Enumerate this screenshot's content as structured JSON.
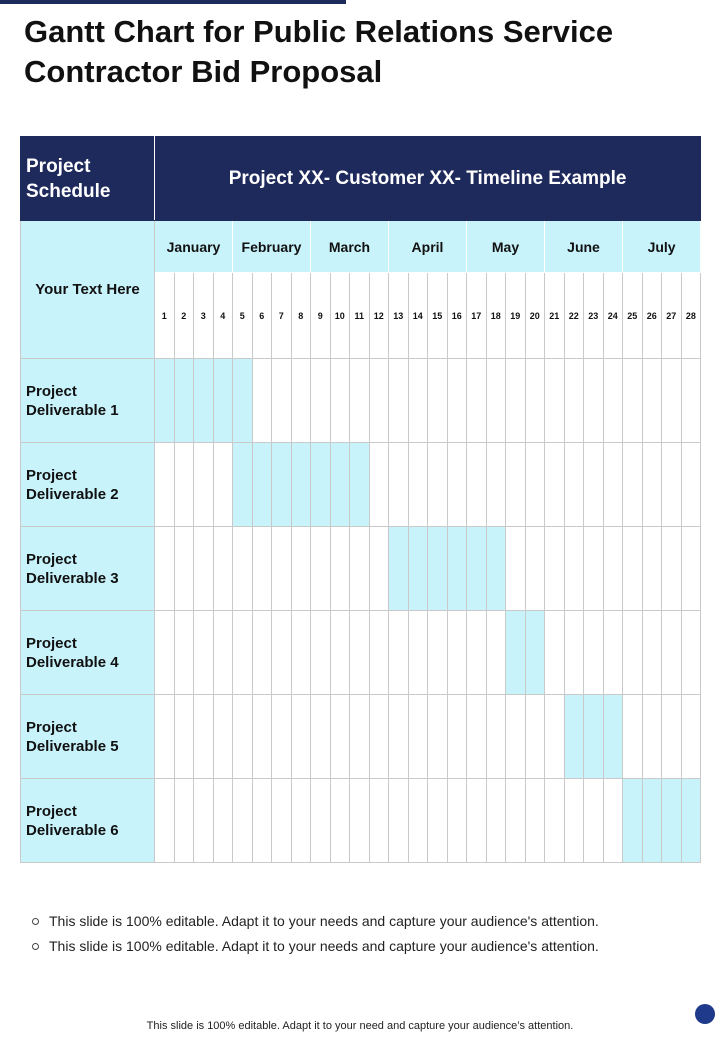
{
  "title": "Gantt Chart for Public Relations Service Contractor Bid Proposal",
  "table": {
    "corner_label": "Project Schedule",
    "timeline_title": "Project XX- Customer XX- Timeline Example",
    "side_label": "Your Text Here",
    "months": [
      {
        "label": "January",
        "weeks": 4
      },
      {
        "label": "February",
        "weeks": 4
      },
      {
        "label": "March",
        "weeks": 4
      },
      {
        "label": "April",
        "weeks": 4
      },
      {
        "label": "May",
        "weeks": 4
      },
      {
        "label": "June",
        "weeks": 4
      },
      {
        "label": "July",
        "weeks": 4
      }
    ],
    "weeks": [
      "1",
      "2",
      "3",
      "4",
      "5",
      "6",
      "7",
      "8",
      "9",
      "10",
      "11",
      "12",
      "13",
      "14",
      "15",
      "16",
      "17",
      "18",
      "19",
      "20",
      "21",
      "22",
      "23",
      "24",
      "25",
      "26",
      "27",
      "28"
    ],
    "deliverables": [
      {
        "label": "Project Deliverable 1",
        "start_week": 1,
        "end_week": 5
      },
      {
        "label": "Project Deliverable 2",
        "start_week": 5,
        "end_week": 11
      },
      {
        "label": "Project Deliverable 3",
        "start_week": 13,
        "end_week": 18
      },
      {
        "label": "Project Deliverable 4",
        "start_week": 19,
        "end_week": 20
      },
      {
        "label": "Project Deliverable 5",
        "start_week": 22,
        "end_week": 24
      },
      {
        "label": "Project Deliverable 6",
        "start_week": 25,
        "end_week": 28
      }
    ]
  },
  "notes": [
    "This slide is 100% editable. Adapt it to your needs and capture your audience's attention.",
    "This slide is 100% editable. Adapt it to your needs and capture your audience's attention."
  ],
  "footer": "This slide is 100% editable. Adapt it to your need and capture your audience’s attention.",
  "colors": {
    "header_navy": "#1f2a5c",
    "highlight_cyan": "#c9f3fb",
    "page_dot": "#1f3a8a"
  }
}
